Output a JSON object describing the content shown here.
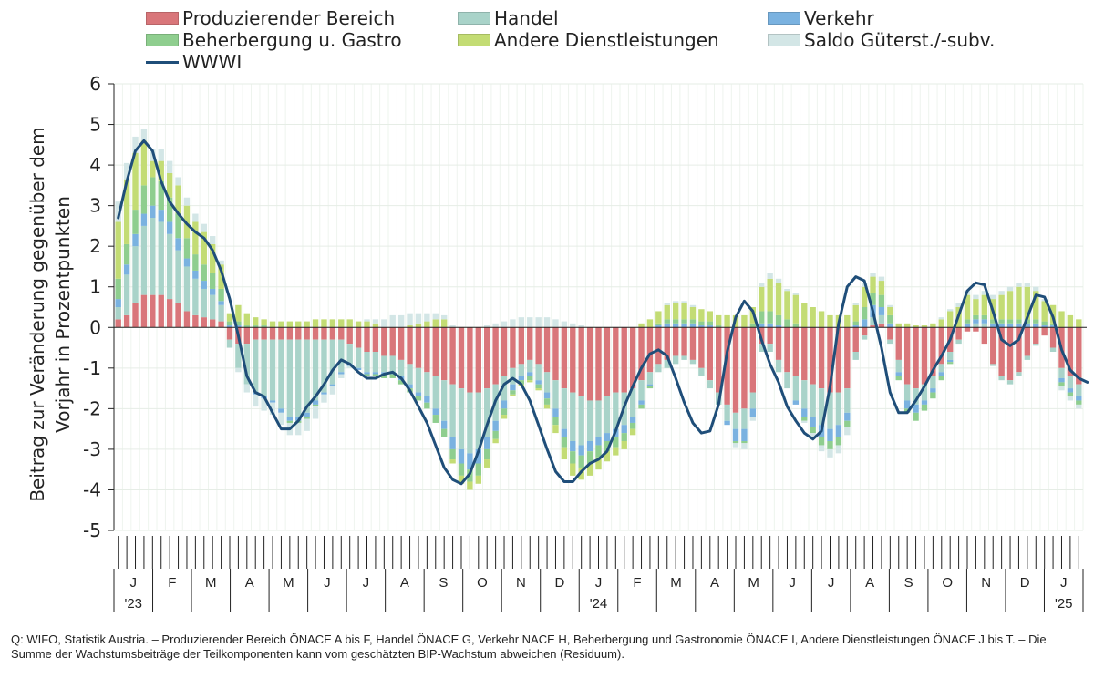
{
  "legend": {
    "items": [
      {
        "label": "Produzierender Bereich",
        "color": "#d9767a"
      },
      {
        "label": "Handel",
        "color": "#a9d3c9"
      },
      {
        "label": "Verkehr",
        "color": "#7ab2e0"
      },
      {
        "label": "Beherbergung u. Gastro",
        "color": "#8fce8f"
      },
      {
        "label": "Andere Dienstleistungen",
        "color": "#c3dc74"
      },
      {
        "label": "Saldo Güterst./-subv.",
        "color": "#d3e6e6"
      }
    ],
    "line_label": "WWWI",
    "line_color": "#1f4e79"
  },
  "source_note": "Q: WIFO, Statistik Austria. – Produzierender Bereich ÖNACE A bis F, Handel ÖNACE G, Verkehr NACE H, Beherbergung und Gastronomie ÖNACE I, Andere Dienstleistungen ÖNACE  J bis T. – Die Summe der Wachstumsbeiträge der Teilkomponenten kann vom geschätzten BIP-Wachstum abweichen (Residuum).",
  "chart_data": {
    "type": "bar",
    "stacked": true,
    "ylabel_line1": "Beitrag zur Veränderung gegenüber dem",
    "ylabel_line2": "Vorjahr in Prozentpunkten",
    "ylim": [
      -5,
      6
    ],
    "yticks": [
      "6",
      "5",
      "4",
      "3",
      "2",
      "1",
      "0",
      "-1",
      "-2",
      "-3",
      "-4",
      "-5"
    ],
    "grid": true,
    "legend_position": "top",
    "months": [
      "J",
      "F",
      "M",
      "A",
      "M",
      "J",
      "J",
      "A",
      "S",
      "O",
      "N",
      "D",
      "J",
      "F",
      "M",
      "A",
      "M",
      "J",
      "J",
      "A",
      "S",
      "O",
      "N",
      "D",
      "J"
    ],
    "year_labels": [
      {
        "month_index": 0,
        "text": "'23"
      },
      {
        "month_index": 12,
        "text": "'24"
      },
      {
        "month_index": 24,
        "text": "'25"
      }
    ],
    "x_period": "weekly, calendar weeks 2023 to week 3 of 2025",
    "series_names": [
      "Produzierender Bereich",
      "Handel",
      "Verkehr",
      "Beherbergung u. Gastro",
      "Andere Dienstleistungen",
      "Saldo Güterst./-subv."
    ],
    "weeks": [
      [
        0.2,
        0.3,
        0.2,
        0.5,
        1.4,
        0.5
      ],
      [
        0.3,
        1.0,
        0.25,
        0.5,
        1.6,
        0.4
      ],
      [
        0.6,
        1.4,
        0.3,
        0.6,
        1.4,
        0.4
      ],
      [
        0.8,
        1.7,
        0.3,
        0.7,
        1.1,
        0.3
      ],
      [
        0.8,
        1.9,
        0.3,
        0.7,
        0.4,
        0.3
      ],
      [
        0.8,
        1.8,
        0.3,
        0.7,
        0.5,
        0.3
      ],
      [
        0.7,
        1.6,
        0.3,
        0.6,
        0.6,
        0.3
      ],
      [
        0.6,
        1.3,
        0.3,
        0.6,
        0.7,
        0.2
      ],
      [
        0.4,
        1.1,
        0.2,
        0.5,
        0.8,
        0.2
      ],
      [
        0.3,
        0.9,
        0.2,
        0.4,
        0.8,
        0.2
      ],
      [
        0.25,
        0.7,
        0.2,
        0.4,
        0.8,
        0.2
      ],
      [
        0.2,
        0.6,
        0.15,
        0.4,
        0.7,
        0.2
      ],
      [
        0.15,
        0.4,
        0.1,
        0.3,
        0.6,
        0.1
      ],
      [
        -0.3,
        -0.2,
        0.05,
        0.1,
        0.2,
        0.0
      ],
      [
        -0.4,
        -0.6,
        0.05,
        0.1,
        0.4,
        -0.1
      ],
      [
        -0.4,
        -1.0,
        0.0,
        0.05,
        0.3,
        -0.2
      ],
      [
        -0.3,
        -1.3,
        -0.05,
        0.05,
        0.2,
        -0.3
      ],
      [
        -0.3,
        -1.4,
        -0.05,
        0.05,
        0.15,
        -0.3
      ],
      [
        -0.3,
        -1.5,
        -0.05,
        0.0,
        0.15,
        -0.3
      ],
      [
        -0.3,
        -1.7,
        -0.1,
        0.0,
        0.15,
        -0.3
      ],
      [
        -0.3,
        -1.9,
        -0.1,
        -0.05,
        0.15,
        -0.3
      ],
      [
        -0.3,
        -1.9,
        -0.1,
        -0.05,
        0.15,
        -0.3
      ],
      [
        -0.3,
        -1.8,
        -0.1,
        -0.05,
        0.15,
        -0.3
      ],
      [
        -0.3,
        -1.5,
        -0.1,
        -0.05,
        0.2,
        -0.3
      ],
      [
        -0.3,
        -1.3,
        -0.05,
        0.0,
        0.2,
        -0.2
      ],
      [
        -0.3,
        -1.1,
        -0.05,
        0.0,
        0.2,
        -0.2
      ],
      [
        -0.3,
        -0.8,
        -0.05,
        0.0,
        0.2,
        -0.1
      ],
      [
        -0.4,
        -0.5,
        -0.05,
        0.0,
        0.2,
        -0.05
      ],
      [
        -0.5,
        -0.5,
        -0.05,
        0.0,
        0.15,
        0.0
      ],
      [
        -0.6,
        -0.5,
        -0.05,
        -0.05,
        0.15,
        0.05
      ],
      [
        -0.6,
        -0.5,
        -0.05,
        -0.05,
        0.1,
        0.1
      ],
      [
        -0.7,
        -0.4,
        -0.05,
        -0.1,
        0.0,
        0.2
      ],
      [
        -0.7,
        -0.4,
        -0.05,
        -0.1,
        0.0,
        0.3
      ],
      [
        -0.8,
        -0.4,
        -0.1,
        -0.1,
        0.0,
        0.3
      ],
      [
        -0.9,
        -0.5,
        -0.1,
        -0.1,
        0.05,
        0.3
      ],
      [
        -1.0,
        -0.6,
        -0.1,
        -0.1,
        0.1,
        0.25
      ],
      [
        -1.1,
        -0.6,
        -0.15,
        -0.15,
        0.15,
        0.2
      ],
      [
        -1.2,
        -0.8,
        -0.15,
        -0.2,
        0.2,
        0.15
      ],
      [
        -1.3,
        -1.0,
        -0.2,
        -0.2,
        0.2,
        0.1
      ],
      [
        -1.4,
        -1.3,
        -0.3,
        -0.25,
        -0.1,
        0.05
      ],
      [
        -1.5,
        -1.5,
        -0.35,
        -0.3,
        -0.2,
        0.0
      ],
      [
        -1.6,
        -1.5,
        -0.4,
        -0.3,
        -0.2,
        0.0
      ],
      [
        -1.6,
        -1.4,
        -0.35,
        -0.3,
        -0.2,
        0.0
      ],
      [
        -1.5,
        -1.2,
        -0.3,
        -0.25,
        -0.2,
        0.05
      ],
      [
        -1.4,
        -0.9,
        -0.25,
        -0.2,
        -0.1,
        0.1
      ],
      [
        -1.2,
        -0.6,
        -0.2,
        -0.15,
        -0.1,
        0.15
      ],
      [
        -1.0,
        -0.4,
        -0.15,
        -0.1,
        -0.05,
        0.2
      ],
      [
        -0.9,
        -0.3,
        -0.1,
        -0.1,
        -0.05,
        0.25
      ],
      [
        -0.8,
        -0.3,
        -0.1,
        -0.1,
        -0.05,
        0.25
      ],
      [
        -0.9,
        -0.4,
        -0.1,
        -0.1,
        -0.05,
        0.25
      ],
      [
        -1.1,
        -0.5,
        -0.15,
        -0.15,
        -0.1,
        0.25
      ],
      [
        -1.3,
        -0.7,
        -0.2,
        -0.2,
        -0.2,
        0.2
      ],
      [
        -1.5,
        -1.0,
        -0.2,
        -0.25,
        -0.3,
        0.15
      ],
      [
        -1.6,
        -1.2,
        -0.25,
        -0.3,
        -0.3,
        0.1
      ],
      [
        -1.7,
        -1.2,
        -0.25,
        -0.3,
        -0.3,
        0.05
      ],
      [
        -1.8,
        -1.0,
        -0.25,
        -0.3,
        -0.3,
        0.0
      ],
      [
        -1.8,
        -0.9,
        -0.2,
        -0.3,
        -0.3,
        0.0
      ],
      [
        -1.7,
        -0.9,
        -0.2,
        -0.25,
        -0.25,
        0.0
      ],
      [
        -1.6,
        -0.9,
        -0.2,
        -0.25,
        -0.2,
        0.0
      ],
      [
        -1.6,
        -0.8,
        -0.2,
        -0.2,
        -0.2,
        0.0
      ],
      [
        -1.5,
        -0.7,
        -0.15,
        -0.15,
        -0.15,
        0.0
      ],
      [
        -1.3,
        -0.5,
        -0.1,
        -0.1,
        0.1,
        0.0
      ],
      [
        -1.1,
        -0.3,
        -0.05,
        -0.05,
        0.2,
        0.0
      ],
      [
        -0.9,
        -0.2,
        0.05,
        0.05,
        0.3,
        0.0
      ],
      [
        -0.8,
        -0.2,
        0.1,
        0.1,
        0.35,
        0.05
      ],
      [
        -0.7,
        -0.2,
        0.1,
        0.1,
        0.4,
        0.05
      ],
      [
        -0.7,
        -0.1,
        0.1,
        0.1,
        0.4,
        0.05
      ],
      [
        -0.8,
        -0.1,
        0.1,
        0.1,
        0.3,
        0.05
      ],
      [
        -1.0,
        -0.2,
        0.05,
        0.1,
        0.3,
        0.0
      ],
      [
        -1.3,
        -0.2,
        0.05,
        0.1,
        0.25,
        0.0
      ],
      [
        -1.6,
        -0.3,
        0.0,
        0.05,
        0.25,
        0.0
      ],
      [
        -1.9,
        -0.4,
        -0.1,
        0.0,
        0.3,
        0.0
      ],
      [
        -2.1,
        -0.4,
        -0.3,
        -0.05,
        0.3,
        -0.1
      ],
      [
        -2.0,
        -0.5,
        -0.3,
        -0.05,
        0.3,
        -0.15
      ],
      [
        -1.6,
        -0.4,
        -0.2,
        0.1,
        0.4,
        -0.1
      ],
      [
        -0.4,
        -0.2,
        0.1,
        0.3,
        0.6,
        0.1
      ],
      [
        -0.4,
        -0.2,
        0.1,
        0.3,
        0.8,
        0.15
      ],
      [
        -0.8,
        -0.3,
        0.05,
        0.25,
        0.8,
        0.1
      ],
      [
        -1.1,
        -0.4,
        0.0,
        0.2,
        0.7,
        0.05
      ],
      [
        -1.2,
        -0.6,
        -0.1,
        0.1,
        0.7,
        0.05
      ],
      [
        -1.3,
        -0.7,
        -0.2,
        -0.1,
        0.6,
        -0.05
      ],
      [
        -1.4,
        -0.8,
        -0.25,
        -0.15,
        0.5,
        -0.1
      ],
      [
        -1.5,
        -0.9,
        -0.3,
        -0.2,
        0.4,
        -0.15
      ],
      [
        -1.6,
        -0.9,
        -0.3,
        -0.2,
        0.3,
        -0.2
      ],
      [
        -1.6,
        -0.8,
        -0.3,
        -0.2,
        0.3,
        -0.2
      ],
      [
        -1.5,
        -0.6,
        -0.2,
        -0.15,
        0.3,
        -0.2
      ],
      [
        -0.6,
        -0.2,
        0.05,
        0.1,
        0.4,
        0.05
      ],
      [
        -0.2,
        -0.1,
        0.2,
        0.3,
        0.5,
        0.1
      ],
      [
        0.05,
        0.2,
        0.3,
        0.3,
        0.4,
        0.1
      ],
      [
        0.1,
        0.2,
        0.2,
        0.3,
        0.35,
        0.1
      ],
      [
        -0.3,
        -0.1,
        0.1,
        0.2,
        0.2,
        0.05
      ],
      [
        -0.8,
        -0.3,
        -0.1,
        -0.1,
        0.1,
        0.0
      ],
      [
        -1.4,
        -0.4,
        -0.2,
        -0.1,
        0.1,
        0.0
      ],
      [
        -1.5,
        -0.4,
        -0.2,
        -0.2,
        0.05,
        0.0
      ],
      [
        -1.4,
        -0.4,
        -0.1,
        -0.15,
        0.05,
        0.0
      ],
      [
        -1.2,
        -0.3,
        -0.1,
        -0.15,
        0.1,
        0.0
      ],
      [
        -0.9,
        -0.2,
        -0.1,
        -0.1,
        0.2,
        0.05
      ],
      [
        -0.6,
        -0.2,
        -0.05,
        -0.05,
        0.4,
        0.05
      ],
      [
        -0.3,
        -0.1,
        0.0,
        0.0,
        0.5,
        0.1
      ],
      [
        -0.1,
        0.0,
        0.1,
        0.1,
        0.6,
        0.1
      ],
      [
        -0.1,
        0.1,
        0.1,
        0.1,
        0.4,
        0.1
      ],
      [
        -0.4,
        0.1,
        0.1,
        0.1,
        0.5,
        0.1
      ],
      [
        -0.9,
        -0.05,
        0.1,
        0.1,
        0.5,
        0.1
      ],
      [
        -1.2,
        -0.1,
        0.1,
        0.1,
        0.6,
        0.1
      ],
      [
        -1.3,
        -0.1,
        0.1,
        0.1,
        0.7,
        0.1
      ],
      [
        -1.1,
        -0.1,
        0.1,
        0.1,
        0.8,
        0.1
      ],
      [
        -0.7,
        -0.1,
        0.1,
        0.1,
        0.8,
        0.1
      ],
      [
        -0.4,
        -0.05,
        0.1,
        0.1,
        0.7,
        0.1
      ],
      [
        -0.2,
        0.0,
        0.05,
        0.1,
        0.5,
        0.05
      ],
      [
        -0.5,
        -0.1,
        0.05,
        0.05,
        0.45,
        0.0
      ],
      [
        -1.0,
        -0.25,
        -0.1,
        -0.1,
        0.4,
        -0.1
      ],
      [
        -1.2,
        -0.3,
        -0.1,
        -0.1,
        0.3,
        -0.1
      ],
      [
        -1.4,
        -0.3,
        -0.1,
        -0.1,
        0.2,
        -0.1
      ]
    ],
    "wwwi": [
      2.7,
      3.6,
      4.35,
      4.6,
      4.35,
      3.6,
      3.1,
      2.8,
      2.55,
      2.35,
      2.2,
      1.9,
      1.4,
      0.7,
      -0.2,
      -1.2,
      -1.6,
      -1.7,
      -2.1,
      -2.5,
      -2.5,
      -2.3,
      -1.95,
      -1.7,
      -1.4,
      -1.05,
      -0.8,
      -0.9,
      -1.1,
      -1.25,
      -1.25,
      -1.15,
      -1.1,
      -1.25,
      -1.55,
      -1.95,
      -2.35,
      -2.9,
      -3.45,
      -3.75,
      -3.85,
      -3.6,
      -3.05,
      -2.4,
      -1.8,
      -1.4,
      -1.25,
      -1.4,
      -1.8,
      -2.4,
      -3.0,
      -3.55,
      -3.8,
      -3.8,
      -3.55,
      -3.35,
      -3.25,
      -3.05,
      -2.55,
      -1.95,
      -1.45,
      -1.0,
      -0.65,
      -0.55,
      -0.7,
      -1.25,
      -1.85,
      -2.35,
      -2.6,
      -2.55,
      -1.9,
      -0.6,
      0.25,
      0.65,
      0.4,
      -0.3,
      -0.9,
      -1.35,
      -1.95,
      -2.3,
      -2.6,
      -2.75,
      -2.55,
      -1.45,
      0.1,
      1.0,
      1.25,
      1.15,
      0.4,
      -0.5,
      -1.6,
      -2.1,
      -2.1,
      -1.8,
      -1.45,
      -1.05,
      -0.7,
      -0.3,
      0.3,
      0.9,
      1.1,
      1.05,
      0.4,
      -0.3,
      -0.45,
      -0.3,
      0.25,
      0.8,
      0.75,
      0.25,
      -0.55,
      -1.05,
      -1.25,
      -1.35
    ]
  }
}
